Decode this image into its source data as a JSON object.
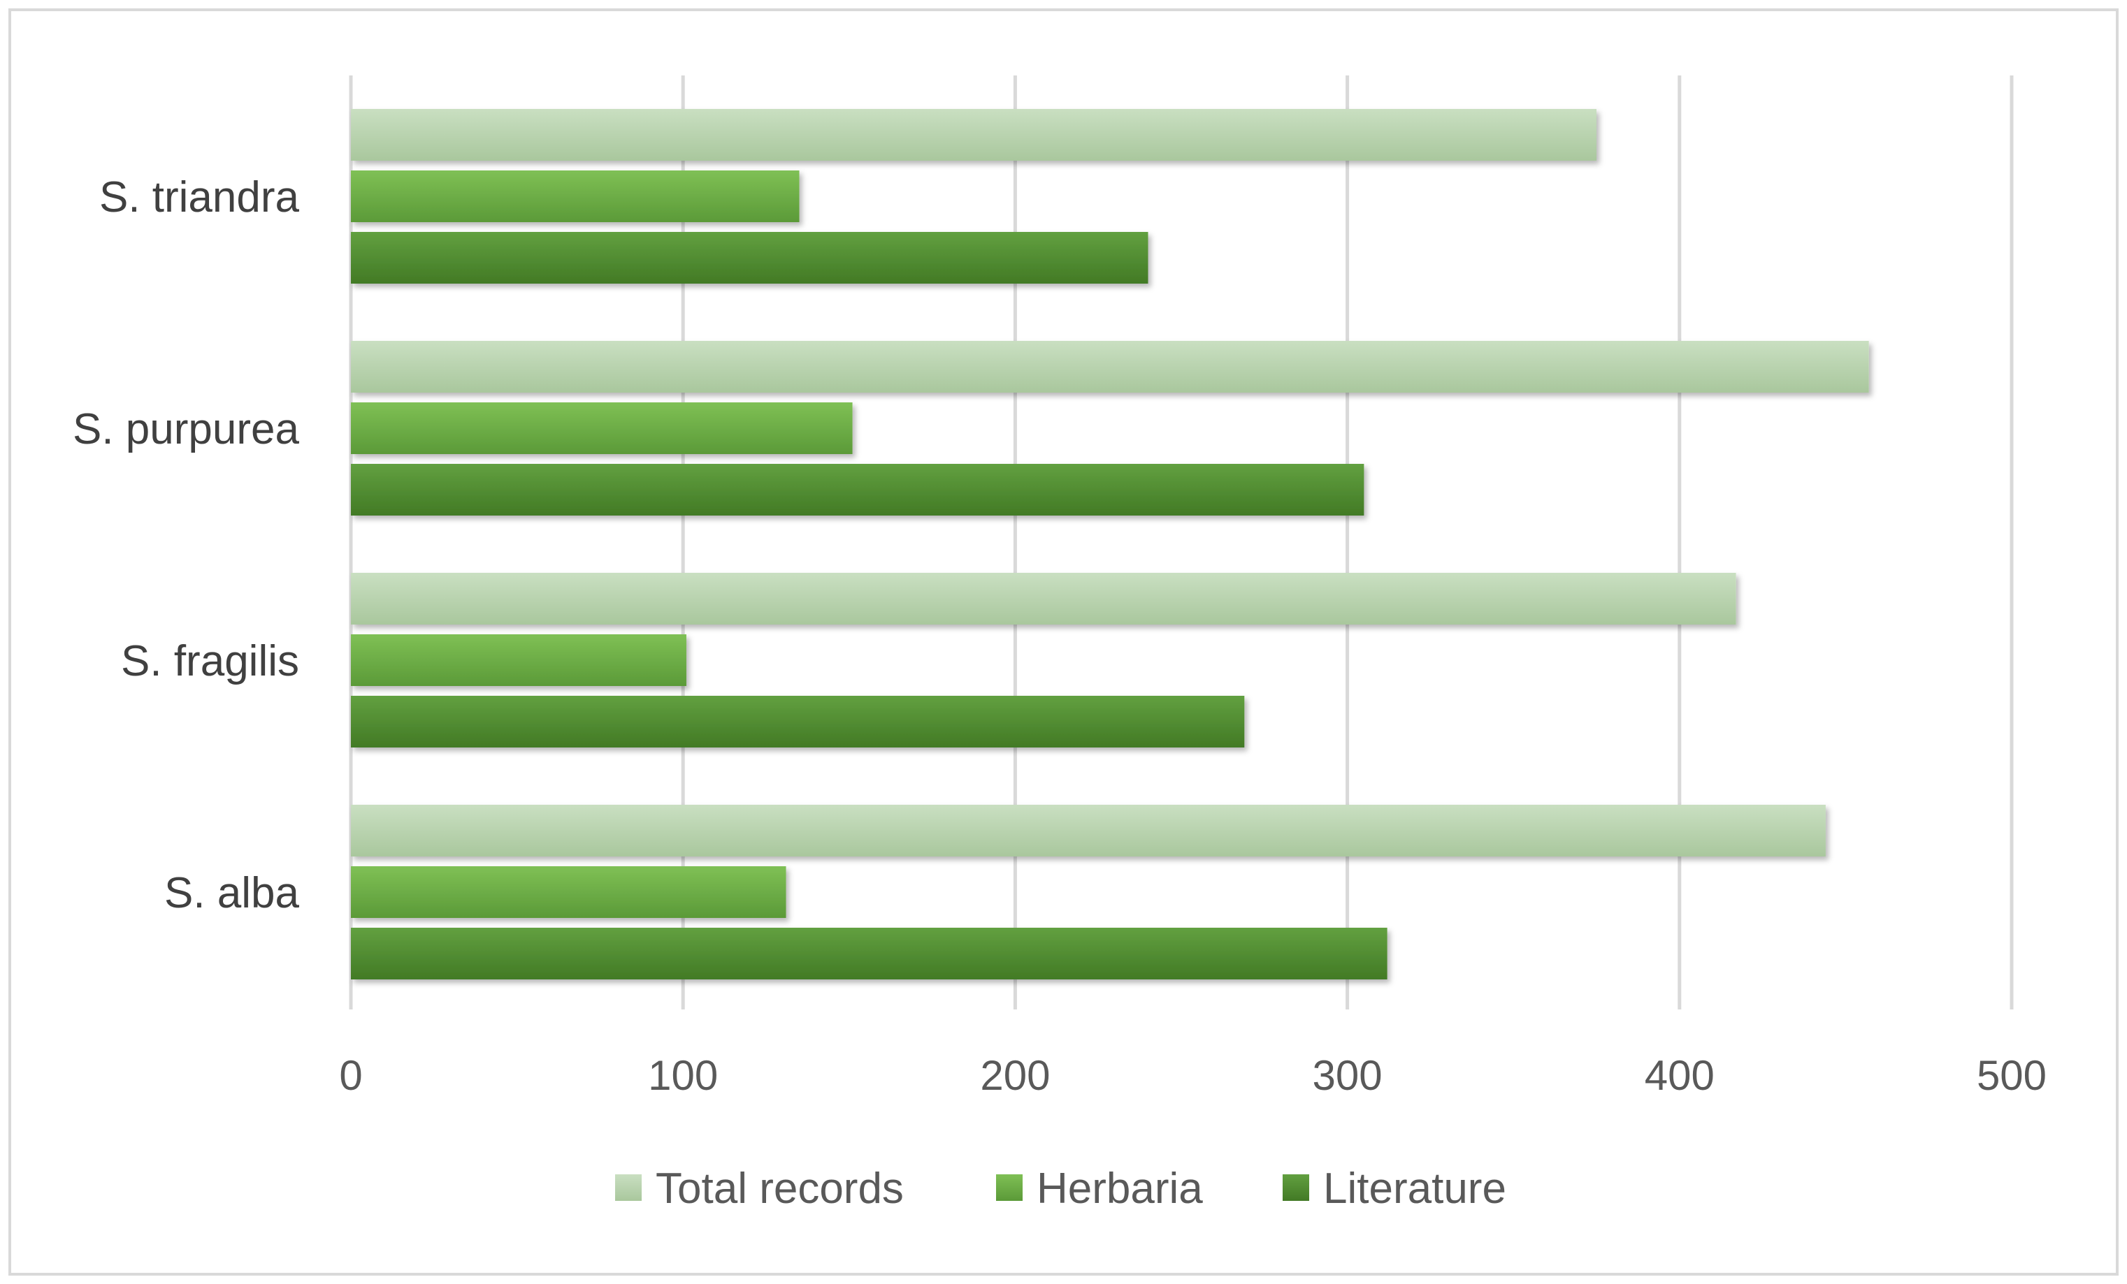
{
  "chart_data": {
    "type": "bar",
    "orientation": "horizontal",
    "title": "",
    "xlabel": "",
    "ylabel": "",
    "xlim": [
      0,
      500
    ],
    "x_ticks": [
      0,
      100,
      200,
      300,
      400,
      500
    ],
    "grid": true,
    "legend_position": "bottom",
    "categories": [
      "S. triandra",
      "S. purpurea",
      "S. fragilis",
      "S. alba"
    ],
    "series": [
      {
        "name": "Total records",
        "color": "#b9d3b0",
        "values": [
          375,
          457,
          417,
          444
        ]
      },
      {
        "name": "Herbaria",
        "color": "#6aaa45",
        "values": [
          135,
          151,
          101,
          131
        ]
      },
      {
        "name": "Literature",
        "color": "#4e8a2f",
        "values": [
          240,
          305,
          269,
          312
        ]
      }
    ]
  }
}
